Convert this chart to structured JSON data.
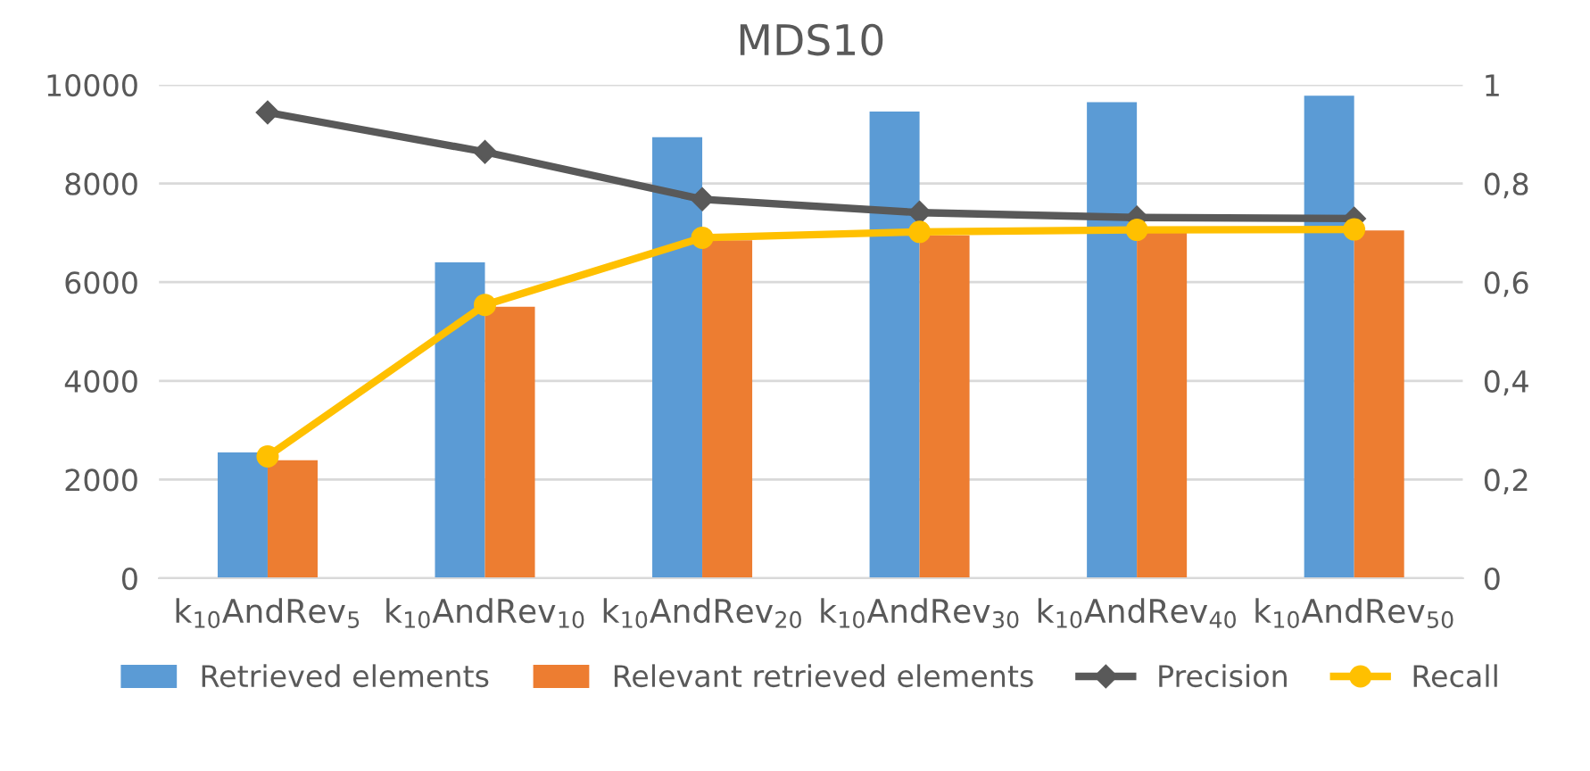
{
  "chart_data": {
    "type": "bar",
    "title": "MDS10",
    "categories": [
      "k$_{10}$AndRev$_{5}$",
      "k$_{10}$AndRev$_{10}$",
      "k$_{10}$AndRev$_{20}$",
      "k$_{10}$AndRev$_{30}$",
      "k$_{10}$AndRev$_{40}$",
      "k$_{10}$AndRev$_{50}$"
    ],
    "series": [
      {
        "name": "Retrieved elements",
        "color": "#5b9bd5",
        "values": [
          2550,
          6400,
          8940,
          9460,
          9650,
          9780
        ]
      },
      {
        "name": "Relevant retrieved elements",
        "color": "#ed7d31",
        "values": [
          2390,
          5500,
          6850,
          6950,
          7010,
          7050
        ]
      },
      {
        "name": "Precision",
        "type": "line",
        "axis": "y2",
        "marker": "diamond",
        "color": "#595959",
        "values": [
          0.944,
          0.864,
          0.768,
          0.741,
          0.731,
          0.729
        ]
      },
      {
        "name": "Recall",
        "type": "line",
        "axis": "y2",
        "marker": "circle",
        "color": "#ffc000",
        "values": [
          0.247,
          0.554,
          0.69,
          0.702,
          0.706,
          0.707
        ]
      }
    ],
    "ylim": [
      0,
      10000
    ],
    "yticks": [
      0,
      2000,
      4000,
      6000,
      8000,
      10000
    ],
    "y2lim": [
      0,
      1
    ],
    "y2ticks": [
      0,
      {
        "value": 0.2,
        "label": "0,2"
      },
      {
        "value": 0.4,
        "label": "0,4"
      },
      {
        "value": 0.6,
        "label": "0,6"
      },
      {
        "value": 0.8,
        "label": "0,8"
      },
      1
    ],
    "grid": "y",
    "legend": "bottom"
  }
}
